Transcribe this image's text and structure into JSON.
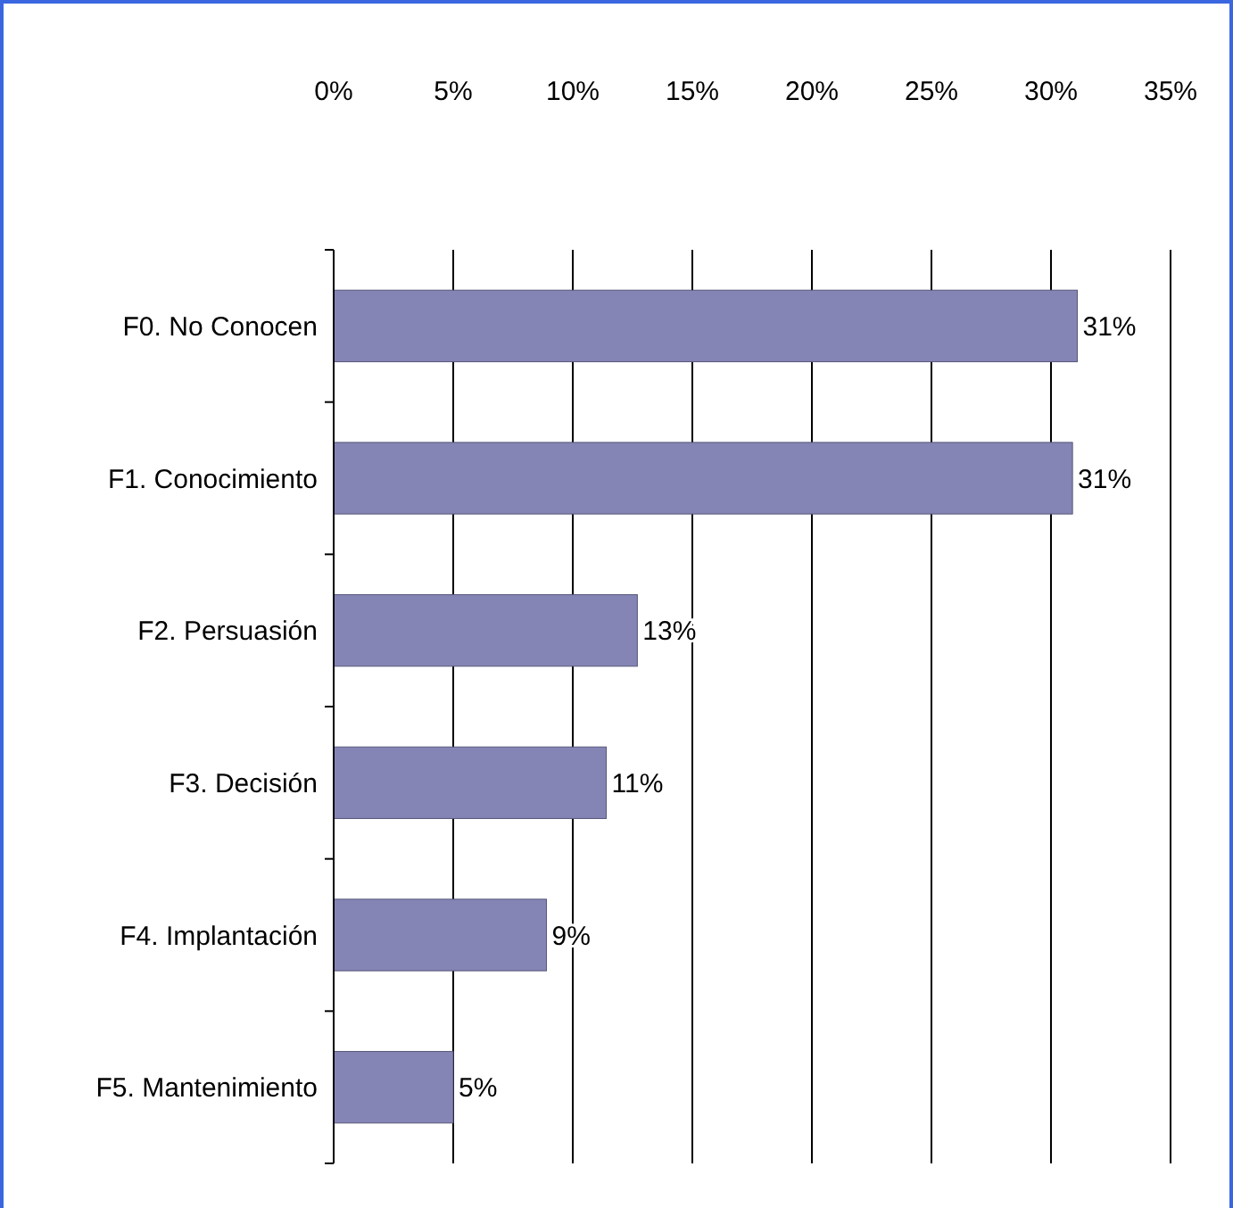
{
  "chart_data": {
    "type": "bar",
    "orientation": "horizontal",
    "categories": [
      "F0. No Conocen",
      "F1. Conocimiento",
      "F2. Persuasión",
      "F3. Decisión",
      "F4. Implantación",
      "F5. Mantenimiento"
    ],
    "values": [
      31.1,
      30.9,
      12.7,
      11.4,
      8.9,
      5.0
    ],
    "value_labels": [
      "31%",
      "31%",
      "13%",
      "11%",
      "9%",
      "5%"
    ],
    "color": "#8585b5",
    "xlim": [
      0,
      35
    ],
    "xticks": [
      {
        "value": 0,
        "label": "0%"
      },
      {
        "value": 5,
        "label": "5%"
      },
      {
        "value": 10,
        "label": "10%"
      },
      {
        "value": 15,
        "label": "15%"
      },
      {
        "value": 20,
        "label": "20%"
      },
      {
        "value": 25,
        "label": "25%"
      },
      {
        "value": 30,
        "label": "30%"
      },
      {
        "value": 35,
        "label": "35%"
      }
    ],
    "grid": "x"
  }
}
